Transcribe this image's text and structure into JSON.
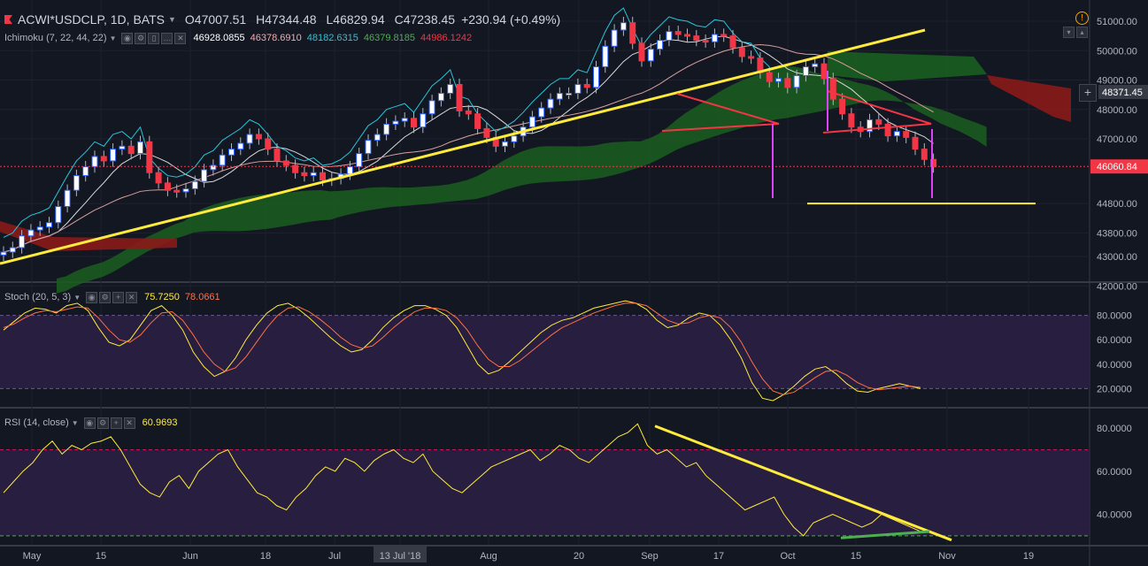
{
  "header": {
    "symbol": "ACWI*USDCLP, 1D, BATS",
    "open": "O47007.51",
    "high": "H47344.48",
    "low": "L46829.94",
    "close": "C47238.45",
    "change": "+230.94 (+0.49%)"
  },
  "ichimoku": {
    "label": "Ichimoku (7, 22, 44, 22)",
    "values": [
      "46928.0855",
      "46378.6910",
      "48182.6315",
      "46379.8185",
      "44986.1242"
    ],
    "colors": [
      "#ffffff",
      "#f7a8a8",
      "#26c6da",
      "#4caf50",
      "#f23645"
    ]
  },
  "stoch": {
    "label": "Stoch (20, 5, 3)",
    "k": "75.7250",
    "d": "78.0661",
    "k_color": "#ffeb3b",
    "d_color": "#ff7043"
  },
  "rsi": {
    "label": "RSI (14, close)",
    "value": "60.9693",
    "color": "#ffeb3b"
  },
  "price_badges": {
    "current": "46060.84",
    "crosshair": "48371.45"
  },
  "icons": [
    "flag-icon",
    "alert-icon",
    "plus-icon",
    "settings-icon",
    "eye-icon",
    "close-icon"
  ],
  "chart_data": [
    {
      "type": "candlestick",
      "title": "ACWI*USDCLP, 1D, BATS",
      "y_ticks": [
        "51000.00",
        "50000.00",
        "49000.00",
        "48000.00",
        "47000.00",
        "46060.84",
        "44800.00",
        "43800.00",
        "43000.00",
        "42000.00"
      ],
      "ylim": [
        42000,
        51300
      ],
      "x_ticks": [
        "May",
        "15",
        "Jun",
        "18",
        "Jul",
        "13 Jul '18",
        "Aug",
        "20",
        "Sep",
        "17",
        "Oct",
        "15",
        "Nov",
        "19"
      ],
      "close_series": [
        43150,
        43300,
        43700,
        43900,
        44000,
        44150,
        44700,
        45250,
        45750,
        46050,
        46400,
        46250,
        46650,
        46750,
        46500,
        46900,
        45850,
        45500,
        45250,
        45200,
        45300,
        45550,
        45950,
        46100,
        46450,
        46650,
        46850,
        47150,
        47000,
        46650,
        46250,
        46100,
        45850,
        45750,
        45850,
        45600,
        45650,
        45800,
        46050,
        46500,
        46950,
        47150,
        47500,
        47600,
        47700,
        47400,
        47850,
        48300,
        48550,
        48850,
        47950,
        47850,
        47350,
        47050,
        46750,
        46900,
        47100,
        47400,
        47750,
        48050,
        48350,
        48550,
        48550,
        48850,
        48750,
        49450,
        50150,
        50700,
        50950,
        50250,
        49650,
        50050,
        50350,
        50650,
        50550,
        50500,
        50350,
        50300,
        50550,
        50500,
        50100,
        49800,
        49750,
        49250,
        48950,
        49050,
        48750,
        49150,
        49450,
        49550,
        49050,
        48350,
        47850,
        47400,
        47250,
        47650,
        47500,
        47100,
        47250,
        47050,
        46650,
        46300,
        46050
      ],
      "annotations": {
        "horizontal_support": 44800,
        "current_price": 46060.84
      }
    },
    {
      "type": "line",
      "title": "Stoch (20, 5, 3)",
      "y_ticks": [
        "80.0000",
        "60.0000",
        "40.0000",
        "20.0000"
      ],
      "ylim": [
        5,
        95
      ],
      "bands": [
        20,
        80
      ],
      "series": [
        {
          "name": "%K",
          "values": [
            68,
            75,
            82,
            86,
            85,
            82,
            88,
            90,
            84,
            70,
            58,
            55,
            60,
            72,
            84,
            88,
            80,
            68,
            50,
            38,
            30,
            34,
            45,
            60,
            72,
            82,
            88,
            90,
            85,
            78,
            70,
            62,
            55,
            50,
            52,
            60,
            70,
            78,
            84,
            88,
            88,
            85,
            80,
            70,
            55,
            40,
            32,
            35,
            42,
            50,
            58,
            66,
            72,
            76,
            78,
            82,
            86,
            88,
            90,
            92,
            90,
            85,
            76,
            70,
            72,
            78,
            82,
            80,
            72,
            60,
            45,
            25,
            12,
            10,
            15,
            22,
            30,
            36,
            38,
            32,
            24,
            18,
            17,
            20,
            22,
            24,
            22,
            20
          ]
        },
        {
          "name": "%D",
          "values": [
            70,
            73,
            78,
            82,
            84,
            83,
            85,
            87,
            86,
            78,
            68,
            60,
            58,
            64,
            74,
            82,
            83,
            76,
            64,
            50,
            40,
            34,
            37,
            46,
            58,
            70,
            80,
            86,
            87,
            83,
            77,
            70,
            62,
            56,
            53,
            55,
            62,
            70,
            77,
            83,
            86,
            86,
            84,
            78,
            68,
            55,
            44,
            38,
            38,
            43,
            50,
            57,
            64,
            70,
            74,
            78,
            82,
            85,
            88,
            90,
            90,
            88,
            82,
            76,
            73,
            74,
            78,
            80,
            78,
            70,
            58,
            42,
            28,
            18,
            15,
            17,
            23,
            29,
            34,
            35,
            31,
            25,
            21,
            19,
            20,
            21,
            22,
            21
          ]
        }
      ]
    },
    {
      "type": "line",
      "title": "RSI (14, close)",
      "y_ticks": [
        "80.0000",
        "60.0000",
        "40.0000"
      ],
      "ylim": [
        25,
        85
      ],
      "bands": [
        30,
        70
      ],
      "series": [
        {
          "name": "RSI",
          "values": [
            50,
            55,
            60,
            64,
            70,
            74,
            68,
            72,
            70,
            73,
            74,
            76,
            70,
            62,
            54,
            50,
            48,
            55,
            58,
            52,
            60,
            64,
            68,
            70,
            62,
            56,
            50,
            48,
            44,
            42,
            48,
            52,
            58,
            62,
            60,
            66,
            64,
            60,
            65,
            68,
            70,
            66,
            64,
            68,
            60,
            56,
            52,
            50,
            54,
            58,
            62,
            64,
            66,
            68,
            70,
            65,
            68,
            72,
            70,
            66,
            64,
            68,
            72,
            76,
            78,
            82,
            72,
            68,
            70,
            66,
            62,
            64,
            58,
            54,
            50,
            46,
            42,
            44,
            46,
            48,
            40,
            34,
            30,
            36,
            38,
            40,
            38,
            36,
            34,
            36,
            40,
            38,
            36,
            34,
            32
          ]
        }
      ]
    }
  ]
}
